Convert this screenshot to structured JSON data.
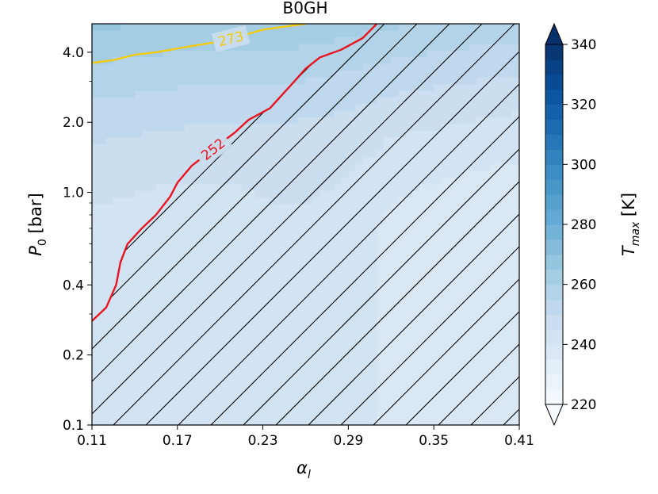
{
  "chart_data": {
    "type": "heatmap",
    "title": "B0GH",
    "xlabel_symbol": "α",
    "xlabel_sub": "l",
    "ylabel_main": "P",
    "ylabel_sub": "0",
    "ylabel_unit": " [bar]",
    "x_ticks": [
      "0.11",
      "0.17",
      "0.23",
      "0.29",
      "0.35",
      "0.41"
    ],
    "x_tick_values": [
      0.11,
      0.17,
      0.23,
      0.29,
      0.35,
      0.41
    ],
    "xlim": [
      0.11,
      0.41
    ],
    "y_ticks": [
      "0.1",
      "0.2",
      "0.4",
      "1.0",
      "2.0",
      "4.0"
    ],
    "y_tick_values": [
      0.1,
      0.2,
      0.4,
      1.0,
      2.0,
      4.0
    ],
    "ylim": [
      0.1,
      5.3
    ],
    "y_scale": "log",
    "colorbar": {
      "label_main": "T",
      "label_sub": "max",
      "label_unit": " [K]",
      "ticks": [
        "220",
        "240",
        "260",
        "280",
        "300",
        "320",
        "340"
      ],
      "tick_values": [
        220,
        240,
        260,
        280,
        300,
        320,
        340
      ],
      "range": [
        220,
        340
      ],
      "step": 5,
      "colormap": "Blues",
      "extend": "both"
    },
    "contours": [
      {
        "label": "273",
        "level": 273,
        "color": "#f2cc0c",
        "points": [
          [
            0.11,
            3.6
          ],
          [
            0.125,
            3.7
          ],
          [
            0.14,
            3.9
          ],
          [
            0.155,
            4.0
          ],
          [
            0.17,
            4.15
          ],
          [
            0.185,
            4.3
          ],
          [
            0.2,
            4.45
          ],
          [
            0.215,
            4.7
          ],
          [
            0.23,
            5.0
          ],
          [
            0.245,
            5.15
          ],
          [
            0.26,
            5.3
          ]
        ]
      },
      {
        "label": "252",
        "level": 252,
        "color": "#e8141e",
        "points": [
          [
            0.11,
            0.28
          ],
          [
            0.12,
            0.32
          ],
          [
            0.127,
            0.4
          ],
          [
            0.13,
            0.5
          ],
          [
            0.135,
            0.6
          ],
          [
            0.145,
            0.7
          ],
          [
            0.155,
            0.8
          ],
          [
            0.165,
            0.96
          ],
          [
            0.17,
            1.1
          ],
          [
            0.18,
            1.3
          ],
          [
            0.19,
            1.45
          ],
          [
            0.2,
            1.62
          ],
          [
            0.21,
            1.8
          ],
          [
            0.22,
            2.05
          ],
          [
            0.235,
            2.3
          ],
          [
            0.25,
            2.9
          ],
          [
            0.26,
            3.4
          ],
          [
            0.27,
            3.8
          ],
          [
            0.285,
            4.1
          ],
          [
            0.3,
            4.6
          ],
          [
            0.31,
            5.3
          ]
        ]
      }
    ],
    "hatched_region": "lower-right, below red contour",
    "grid": false
  }
}
